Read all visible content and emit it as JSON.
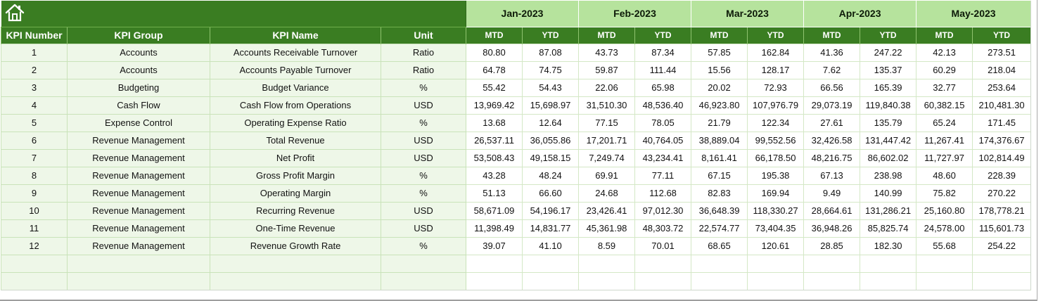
{
  "header": {
    "home_icon": "home-icon",
    "months": [
      "Jan-2023",
      "Feb-2023",
      "Mar-2023",
      "Apr-2023",
      "May-2023"
    ],
    "columns": {
      "kpi_number": "KPI Number",
      "kpi_group": "KPI Group",
      "kpi_name": "KPI Name",
      "unit": "Unit",
      "mtd": "MTD",
      "ytd": "YTD"
    }
  },
  "colors": {
    "header_green": "#3a7d22",
    "month_green": "#b6e39d",
    "info_fill": "#eef7e8"
  },
  "rows": [
    {
      "num": "1",
      "group": "Accounts",
      "name": "Accounts Receivable Turnover",
      "unit": "Ratio",
      "values": [
        "80.80",
        "87.08",
        "43.73",
        "87.34",
        "57.85",
        "162.84",
        "41.36",
        "247.22",
        "42.13",
        "273.51"
      ]
    },
    {
      "num": "2",
      "group": "Accounts",
      "name": "Accounts Payable Turnover",
      "unit": "Ratio",
      "values": [
        "64.78",
        "74.75",
        "59.87",
        "111.44",
        "15.56",
        "128.17",
        "7.62",
        "135.37",
        "60.29",
        "218.04"
      ]
    },
    {
      "num": "3",
      "group": "Budgeting",
      "name": "Budget Variance",
      "unit": "%",
      "values": [
        "55.42",
        "54.43",
        "22.06",
        "65.98",
        "20.02",
        "72.93",
        "66.56",
        "165.39",
        "32.77",
        "253.64"
      ]
    },
    {
      "num": "4",
      "group": "Cash Flow",
      "name": "Cash Flow from Operations",
      "unit": "USD",
      "values": [
        "13,969.42",
        "15,698.97",
        "31,510.30",
        "48,536.40",
        "46,923.80",
        "107,976.79",
        "29,073.19",
        "119,840.38",
        "60,382.15",
        "210,481.30"
      ]
    },
    {
      "num": "5",
      "group": "Expense Control",
      "name": "Operating Expense Ratio",
      "unit": "%",
      "values": [
        "13.68",
        "12.64",
        "77.15",
        "78.05",
        "21.79",
        "122.34",
        "27.61",
        "135.79",
        "65.24",
        "171.45"
      ]
    },
    {
      "num": "6",
      "group": "Revenue Management",
      "name": "Total Revenue",
      "unit": "USD",
      "values": [
        "26,537.11",
        "36,055.86",
        "17,201.71",
        "40,764.05",
        "38,889.04",
        "99,552.56",
        "32,426.58",
        "131,447.42",
        "11,267.41",
        "174,376.67"
      ]
    },
    {
      "num": "7",
      "group": "Revenue Management",
      "name": "Net Profit",
      "unit": "USD",
      "values": [
        "53,508.43",
        "49,158.15",
        "7,249.74",
        "43,234.41",
        "8,161.41",
        "66,178.50",
        "48,216.75",
        "86,602.02",
        "11,727.97",
        "102,814.49"
      ]
    },
    {
      "num": "8",
      "group": "Revenue Management",
      "name": "Gross Profit Margin",
      "unit": "%",
      "values": [
        "43.28",
        "48.24",
        "69.91",
        "77.11",
        "67.15",
        "195.38",
        "67.13",
        "238.98",
        "48.60",
        "228.39"
      ]
    },
    {
      "num": "9",
      "group": "Revenue Management",
      "name": "Operating Margin",
      "unit": "%",
      "values": [
        "51.13",
        "66.60",
        "24.68",
        "112.68",
        "82.83",
        "169.94",
        "9.49",
        "140.99",
        "75.82",
        "270.22"
      ]
    },
    {
      "num": "10",
      "group": "Revenue Management",
      "name": "Recurring Revenue",
      "unit": "USD",
      "values": [
        "58,671.09",
        "54,196.17",
        "23,426.41",
        "97,012.30",
        "36,648.39",
        "118,330.27",
        "28,664.61",
        "131,286.21",
        "25,160.80",
        "178,778.21"
      ]
    },
    {
      "num": "11",
      "group": "Revenue Management",
      "name": "One-Time Revenue",
      "unit": "USD",
      "values": [
        "11,398.49",
        "14,831.77",
        "45,361.98",
        "48,303.72",
        "22,574.77",
        "73,404.35",
        "36,948.26",
        "85,825.74",
        "24,578.00",
        "115,601.73"
      ]
    },
    {
      "num": "12",
      "group": "Revenue Management",
      "name": "Revenue Growth Rate",
      "unit": "%",
      "values": [
        "39.07",
        "41.10",
        "8.59",
        "70.01",
        "68.65",
        "120.61",
        "28.85",
        "182.30",
        "55.68",
        "254.22"
      ]
    }
  ]
}
